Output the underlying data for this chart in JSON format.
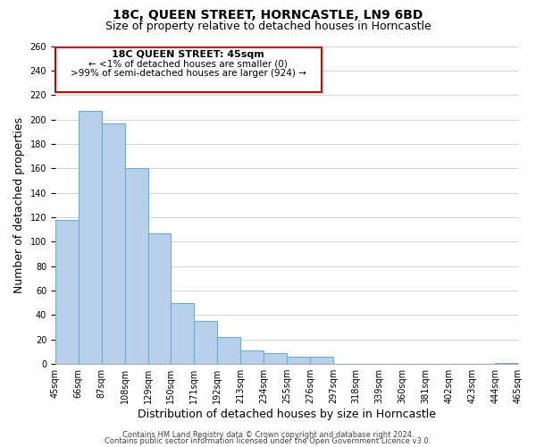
{
  "title": "18C, QUEEN STREET, HORNCASTLE, LN9 6BD",
  "subtitle": "Size of property relative to detached houses in Horncastle",
  "xlabel": "Distribution of detached houses by size in Horncastle",
  "ylabel": "Number of detached properties",
  "bar_values": [
    118,
    207,
    197,
    160,
    107,
    50,
    35,
    22,
    11,
    9,
    6,
    6,
    0,
    0,
    0,
    0,
    0,
    0,
    0,
    1
  ],
  "bar_labels": [
    "45sqm",
    "66sqm",
    "87sqm",
    "108sqm",
    "129sqm",
    "150sqm",
    "171sqm",
    "192sqm",
    "213sqm",
    "234sqm",
    "255sqm",
    "276sqm",
    "297sqm",
    "318sqm",
    "339sqm",
    "360sqm",
    "381sqm",
    "402sqm",
    "423sqm",
    "444sqm",
    "465sqm"
  ],
  "bar_color": "#b8d0ea",
  "bar_edge_color": "#6aaed6",
  "ylim": [
    0,
    260
  ],
  "yticks": [
    0,
    20,
    40,
    60,
    80,
    100,
    120,
    140,
    160,
    180,
    200,
    220,
    240,
    260
  ],
  "annotation_title": "18C QUEEN STREET: 45sqm",
  "annotation_line1": "← <1% of detached houses are smaller (0)",
  "annotation_line2": ">99% of semi-detached houses are larger (924) →",
  "annotation_box_color": "#ffffff",
  "annotation_box_edge_color": "#cc0000",
  "footer_line1": "Contains HM Land Registry data © Crown copyright and database right 2024.",
  "footer_line2": "Contains public sector information licensed under the Open Government Licence v3.0.",
  "background_color": "#ffffff",
  "grid_color": "#cccccc",
  "title_fontsize": 10,
  "subtitle_fontsize": 9,
  "axis_label_fontsize": 9,
  "tick_fontsize": 7,
  "footer_fontsize": 6,
  "annotation_fontsize_title": 8,
  "annotation_fontsize_body": 7.5
}
